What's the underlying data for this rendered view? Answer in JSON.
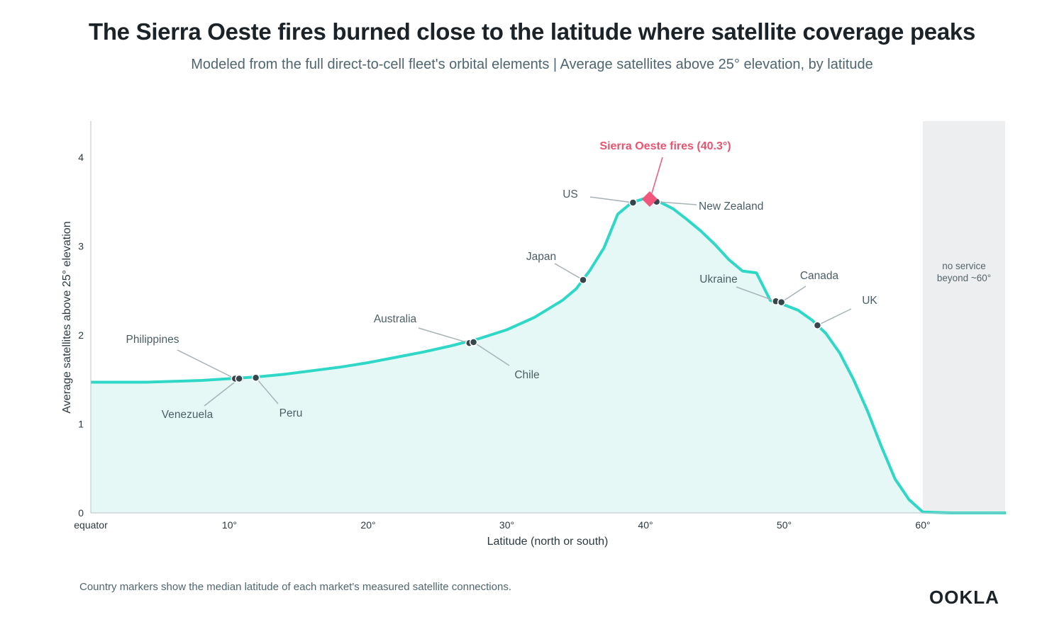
{
  "title": "The Sierra Oeste fires burned close to the latitude where satellite coverage peaks",
  "subtitle": "Modeled from the full direct-to-cell fleet's orbital elements | Average satellites above 25° elevation, by latitude",
  "footnote": "Country markers show the median latitude of each market's measured satellite connections.",
  "logo": "OOKLA",
  "colors": {
    "line": "#2fd8c6",
    "fill": "#e6f8f6",
    "marker": "#36464d",
    "event": "#f0577a",
    "no_service_band": "#eceef0"
  },
  "chart_data": {
    "type": "area",
    "xlabel": "Latitude (north or south)",
    "ylabel": "Average satellites above 25° elevation",
    "xlim": [
      0,
      66
    ],
    "ylim": [
      0,
      4.4
    ],
    "x_ticks": [
      {
        "value": 0,
        "label": "equator"
      },
      {
        "value": 10,
        "label": "10°"
      },
      {
        "value": 20,
        "label": "20°"
      },
      {
        "value": 30,
        "label": "30°"
      },
      {
        "value": 40,
        "label": "40°"
      },
      {
        "value": 50,
        "label": "50°"
      },
      {
        "value": 60,
        "label": "60°"
      }
    ],
    "y_ticks": [
      {
        "value": 0,
        "label": "0"
      },
      {
        "value": 1,
        "label": "1"
      },
      {
        "value": 2,
        "label": "2"
      },
      {
        "value": 3,
        "label": "3"
      },
      {
        "value": 4,
        "label": "4"
      }
    ],
    "series": [
      {
        "x": [
          0,
          2,
          4,
          6,
          8,
          10,
          12,
          14,
          16,
          18,
          20,
          22,
          24,
          26,
          28,
          30,
          32,
          34,
          35,
          36,
          37,
          38,
          39,
          40,
          41,
          42,
          43,
          44,
          45,
          46,
          47,
          48,
          49,
          50,
          51,
          52,
          53,
          54,
          55,
          56,
          57,
          58,
          59,
          60,
          62,
          64,
          66
        ],
        "y": [
          1.47,
          1.47,
          1.47,
          1.48,
          1.49,
          1.51,
          1.53,
          1.56,
          1.6,
          1.64,
          1.69,
          1.75,
          1.81,
          1.88,
          1.96,
          2.06,
          2.2,
          2.39,
          2.52,
          2.73,
          2.98,
          3.36,
          3.49,
          3.54,
          3.5,
          3.42,
          3.3,
          3.17,
          3.02,
          2.85,
          2.72,
          2.7,
          2.39,
          2.34,
          2.28,
          2.17,
          2.02,
          1.8,
          1.5,
          1.15,
          0.75,
          0.38,
          0.15,
          0.01,
          0.0,
          0.0,
          0.0
        ]
      }
    ],
    "no_service": {
      "from": 60,
      "to": 66,
      "label_lines": [
        "no service",
        "beyond ~60°"
      ]
    },
    "event": {
      "label": "Sierra Oeste fires (40.3°)",
      "x": 40.3,
      "y": 3.53
    },
    "markers": [
      {
        "name": "Philippines",
        "x": 10.4,
        "y": 1.51
      },
      {
        "name": "Venezuela",
        "x": 10.7,
        "y": 1.51
      },
      {
        "name": "Peru",
        "x": 11.9,
        "y": 1.52
      },
      {
        "name": "Australia",
        "x": 27.3,
        "y": 1.91
      },
      {
        "name": "Chile",
        "x": 27.6,
        "y": 1.92
      },
      {
        "name": "Japan",
        "x": 35.5,
        "y": 2.62
      },
      {
        "name": "US",
        "x": 39.1,
        "y": 3.49
      },
      {
        "name": "New Zealand",
        "x": 40.8,
        "y": 3.5
      },
      {
        "name": "Ukraine",
        "x": 49.4,
        "y": 2.38
      },
      {
        "name": "Canada",
        "x": 49.8,
        "y": 2.37
      },
      {
        "name": "UK",
        "x": 52.4,
        "y": 2.11
      }
    ]
  }
}
